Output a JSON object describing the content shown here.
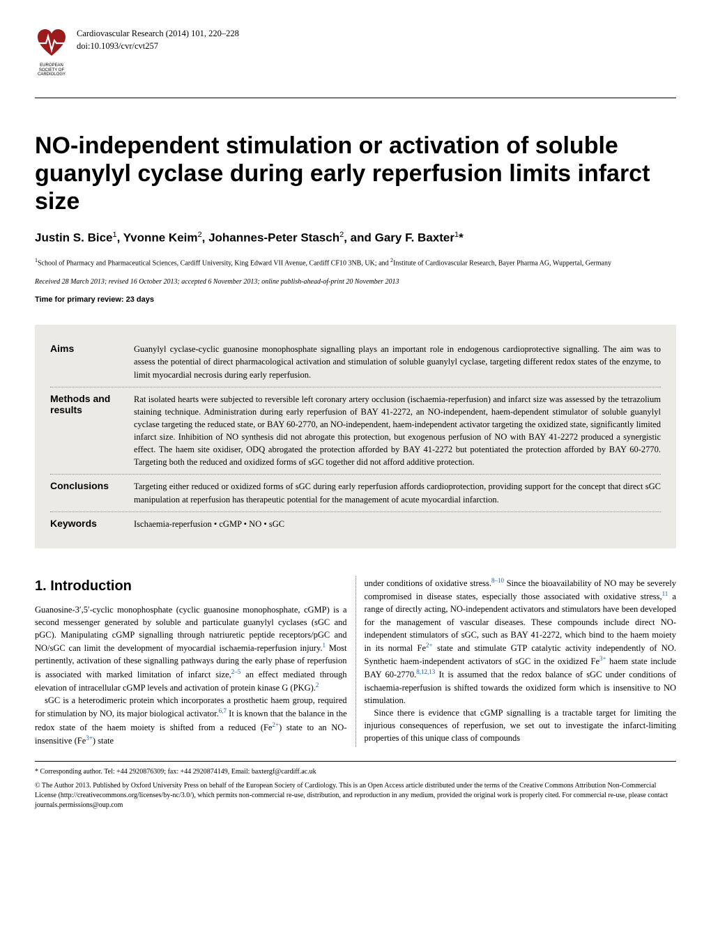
{
  "header": {
    "logo_text": "EUROPEAN SOCIETY OF CARDIOLOGY",
    "journal_line": "Cardiovascular Research (2014) 101, 220–228",
    "doi_line": "doi:10.1093/cvr/cvt257"
  },
  "title": "NO-independent stimulation or activation of soluble guanylyl cyclase during early reperfusion limits infarct size",
  "authors_html": "Justin S. Bice<sup>1</sup>, Yvonne Keim<sup>2</sup>, Johannes-Peter Stasch<sup>2</sup>, and Gary F. Baxter<sup>1</sup>*",
  "affiliations_html": "<sup>1</sup>School of Pharmacy and Pharmaceutical Sciences, Cardiff University, King Edward VII Avenue, Cardiff CF10 3NB, UK; and <sup>2</sup>Institute of Cardiovascular Research, Bayer Pharma AG, Wuppertal, Germany",
  "received": "Received 28 March 2013; revised 16 October 2013; accepted 6 November 2013; online publish-ahead-of-print 20 November 2013",
  "review_time": "Time for primary review: 23 days",
  "abstract": {
    "rows": [
      {
        "label": "Aims",
        "text": "Guanylyl cyclase-cyclic guanosine monophosphate signalling plays an important role in endogenous cardioprotective signalling. The aim was to assess the potential of direct pharmacological activation and stimulation of soluble guanylyl cyclase, targeting different redox states of the enzyme, to limit myocardial necrosis during early reperfusion.",
        "dotted": true
      },
      {
        "label": "Methods and results",
        "text": "Rat isolated hearts were subjected to reversible left coronary artery occlusion (ischaemia-reperfusion) and infarct size was assessed by the tetrazolium staining technique. Administration during early reperfusion of BAY 41-2272, an NO-independent, haem-dependent stimulator of soluble guanylyl cyclase targeting the reduced state, or BAY 60-2770, an NO-independent, haem-independent activator targeting the oxidized state, significantly limited infarct size. Inhibition of NO synthesis did not abrogate this protection, but exogenous perfusion of NO with BAY 41-2272 produced a synergistic effect. The haem site oxidiser, ODQ abrogated the protection afforded by BAY 41-2272 but potentiated the protection afforded by BAY 60-2770. Targeting both the reduced and oxidized forms of sGC together did not afford additive protection.",
        "dotted": true
      },
      {
        "label": "Conclusions",
        "text": "Targeting either reduced or oxidized forms of sGC during early reperfusion affords cardioprotection, providing support for the concept that direct sGC manipulation at reperfusion has therapeutic potential for the management of acute myocardial infarction.",
        "dotted": true
      },
      {
        "label": "Keywords",
        "text": "Ischaemia-reperfusion • cGMP • NO • sGC",
        "dotted": false
      }
    ]
  },
  "intro": {
    "heading": "1. Introduction",
    "left_paras": [
      "Guanosine-3′,5′-cyclic monophosphate (cyclic guanosine monophosphate, cGMP) is a second messenger generated by soluble and particulate guanylyl cyclases (sGC and pGC). Manipulating cGMP signalling through natriuretic peptide receptors/pGC and NO/sGC can limit the development of myocardial ischaemia-reperfusion injury.<sup>1</sup> Most pertinently, activation of these signalling pathways during the early phase of reperfusion is associated with marked limitation of infarct size,<sup>2–5</sup> an effect mediated through elevation of intracellular cGMP levels and activation of protein kinase G (PKG).<sup>2</sup>",
      "sGC is a heterodimeric protein which incorporates a prosthetic haem group, required for stimulation by NO, its major biological activator.<sup>6,7</sup> It is known that the balance in the redox state of the haem moiety is shifted from a reduced (Fe<sup>2+</sup>) state to an NO-insensitive (Fe<sup>3+</sup>) state"
    ],
    "right_paras": [
      "under conditions of oxidative stress.<sup>8–10</sup> Since the bioavailability of NO may be severely compromised in disease states, especially those associated with oxidative stress,<sup>11</sup> a range of directly acting, NO-independent activators and stimulators have been developed for the management of vascular diseases. These compounds include direct NO-independent stimulators of sGC, such as BAY 41-2272, which bind to the haem moiety in its normal Fe<sup>2+</sup> state and stimulate GTP catalytic activity independently of NO. Synthetic haem-independent activators of sGC in the oxidized Fe<sup>3+</sup> haem state include BAY 60-2770.<sup>8,12,13</sup> It is assumed that the redox balance of sGC under conditions of ischaemia-reperfusion is shifted towards the oxidized form which is insensitive to NO stimulation.",
      "Since there is evidence that cGMP signalling is a tractable target for limiting the injurious consequences of reperfusion, we set out to investigate the infarct-limiting properties of this unique class of compounds"
    ]
  },
  "footer": {
    "corresponding": "* Corresponding author. Tel: +44 2920876309; fax: +44 2920874149, Email: baxtergf@cardiff.ac.uk",
    "license": "© The Author 2013. Published by Oxford University Press on behalf of the European Society of Cardiology. This is an Open Access article distributed under the terms of the Creative Commons Attribution Non-Commercial License (http://creativecommons.org/licenses/by-nc/3.0/), which permits non-commercial re-use, distribution, and reproduction in any medium, provided the original work is properly cited. For commercial re-use, please contact journals.permissions@oup.com"
  },
  "colors": {
    "abstract_bg": "#eceae4",
    "ref_link": "#1a5aa3",
    "text": "#000000",
    "bg": "#ffffff"
  }
}
